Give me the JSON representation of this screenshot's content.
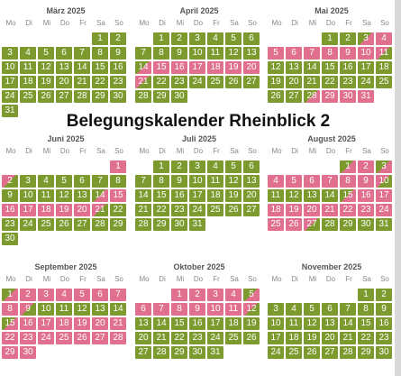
{
  "title": "Belegungskalender Rheinblick 2",
  "weekdays": [
    "Mo",
    "Di",
    "Mi",
    "Do",
    "Fr",
    "Sa",
    "So"
  ],
  "colors": {
    "free": "#7c9a2e",
    "booked": "#e0708e",
    "text": "#ffffff"
  },
  "months": [
    {
      "name": "März 2025",
      "offset": 5,
      "days": 31,
      "booked": [],
      "half_in": [],
      "half_out": []
    },
    {
      "name": "April 2025",
      "offset": 1,
      "days": 30,
      "booked": [
        15,
        16,
        17,
        18,
        19,
        20
      ],
      "half_in": [
        14
      ],
      "half_out": [
        21
      ]
    },
    {
      "name": "Mai 2025",
      "offset": 3,
      "days": 31,
      "booked": [
        4,
        5,
        6,
        7,
        8,
        9,
        10,
        29,
        30,
        31
      ],
      "half_in": [
        3,
        28
      ],
      "half_out": [
        11
      ]
    },
    {
      "name": "Juni 2025",
      "offset": 6,
      "days": 30,
      "booked": [
        1,
        15,
        16,
        17,
        18,
        19,
        20
      ],
      "half_in": [
        14
      ],
      "half_out": [
        2,
        21
      ]
    },
    {
      "name": "Juli 2025",
      "offset": 1,
      "days": 31,
      "booked": [],
      "half_in": [],
      "half_out": []
    },
    {
      "name": "August 2025",
      "offset": 4,
      "days": 31,
      "booked": [
        2,
        4,
        5,
        6,
        7,
        8,
        9,
        16,
        17,
        18,
        19,
        20,
        21,
        22,
        23,
        24,
        25,
        26
      ],
      "half_in": [
        1,
        3,
        15
      ],
      "half_out": [
        10,
        27
      ]
    },
    {
      "name": "September 2025",
      "offset": 0,
      "days": 30,
      "booked": [
        2,
        3,
        4,
        5,
        6,
        7,
        8,
        16,
        17,
        18,
        19,
        20,
        21,
        22,
        23,
        24,
        25,
        26,
        27,
        28,
        29,
        30
      ],
      "half_in": [
        1,
        15
      ],
      "half_out": [
        9
      ]
    },
    {
      "name": "Oktober 2025",
      "offset": 2,
      "days": 31,
      "booked": [
        1,
        2,
        3,
        4,
        6,
        7,
        8,
        9,
        10,
        11
      ],
      "half_in": [
        5
      ],
      "half_out": [
        12
      ]
    },
    {
      "name": "November 2025",
      "offset": 5,
      "days": 30,
      "booked": [],
      "half_in": [],
      "half_out": []
    }
  ]
}
